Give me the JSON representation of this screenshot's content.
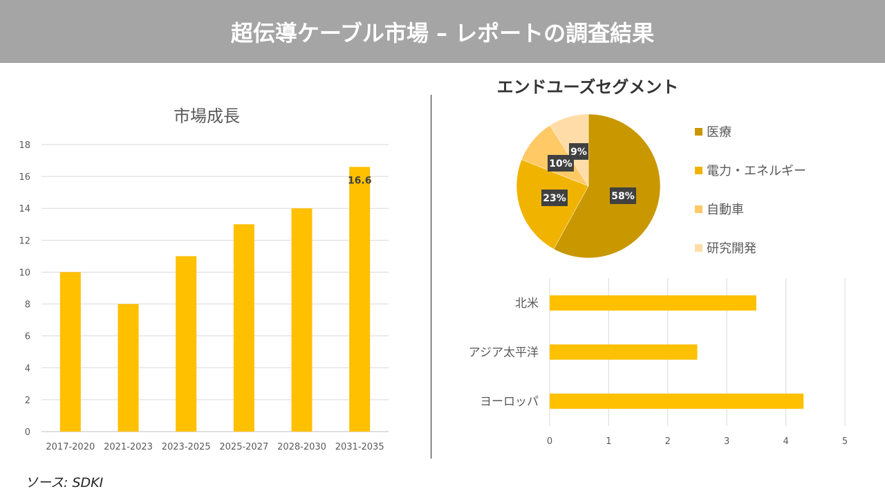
{
  "title": "超伝導ケーブル市場 – レポートの調査結果",
  "source": "ソース: SDKI",
  "chart_data": [
    {
      "type": "bar",
      "title": "市場成長",
      "categories": [
        "2017-2020",
        "2021-2023",
        "2023-2025",
        "2025-2027",
        "2028-2030",
        "2031-2035"
      ],
      "values": [
        10,
        8,
        11,
        13,
        14,
        16.6
      ],
      "data_labels": {
        "5": "16.6"
      },
      "ylim": [
        0,
        18
      ],
      "yticks": [
        0,
        2,
        4,
        6,
        8,
        10,
        12,
        14,
        16,
        18
      ],
      "grid": true,
      "color": "#ffc000"
    },
    {
      "type": "pie",
      "title": "エンドユーズセグメント",
      "categories": [
        "医療",
        "電力・エネルギー",
        "自動車",
        "研究開発"
      ],
      "values": [
        58,
        23,
        10,
        9
      ],
      "labels": [
        "58%",
        "23%",
        "10%",
        "9%"
      ],
      "colors": [
        "#c99700",
        "#f0b400",
        "#ffc966",
        "#ffdca8"
      ],
      "legend": "right"
    },
    {
      "type": "bar",
      "orientation": "horizontal",
      "categories": [
        "北米",
        "アジア太平洋",
        "ヨーロッパ"
      ],
      "values": [
        3.5,
        2.5,
        4.3
      ],
      "xlim": [
        0,
        5
      ],
      "xticks": [
        0,
        1,
        2,
        3,
        4,
        5
      ],
      "grid": true,
      "color": "#ffc000"
    }
  ]
}
